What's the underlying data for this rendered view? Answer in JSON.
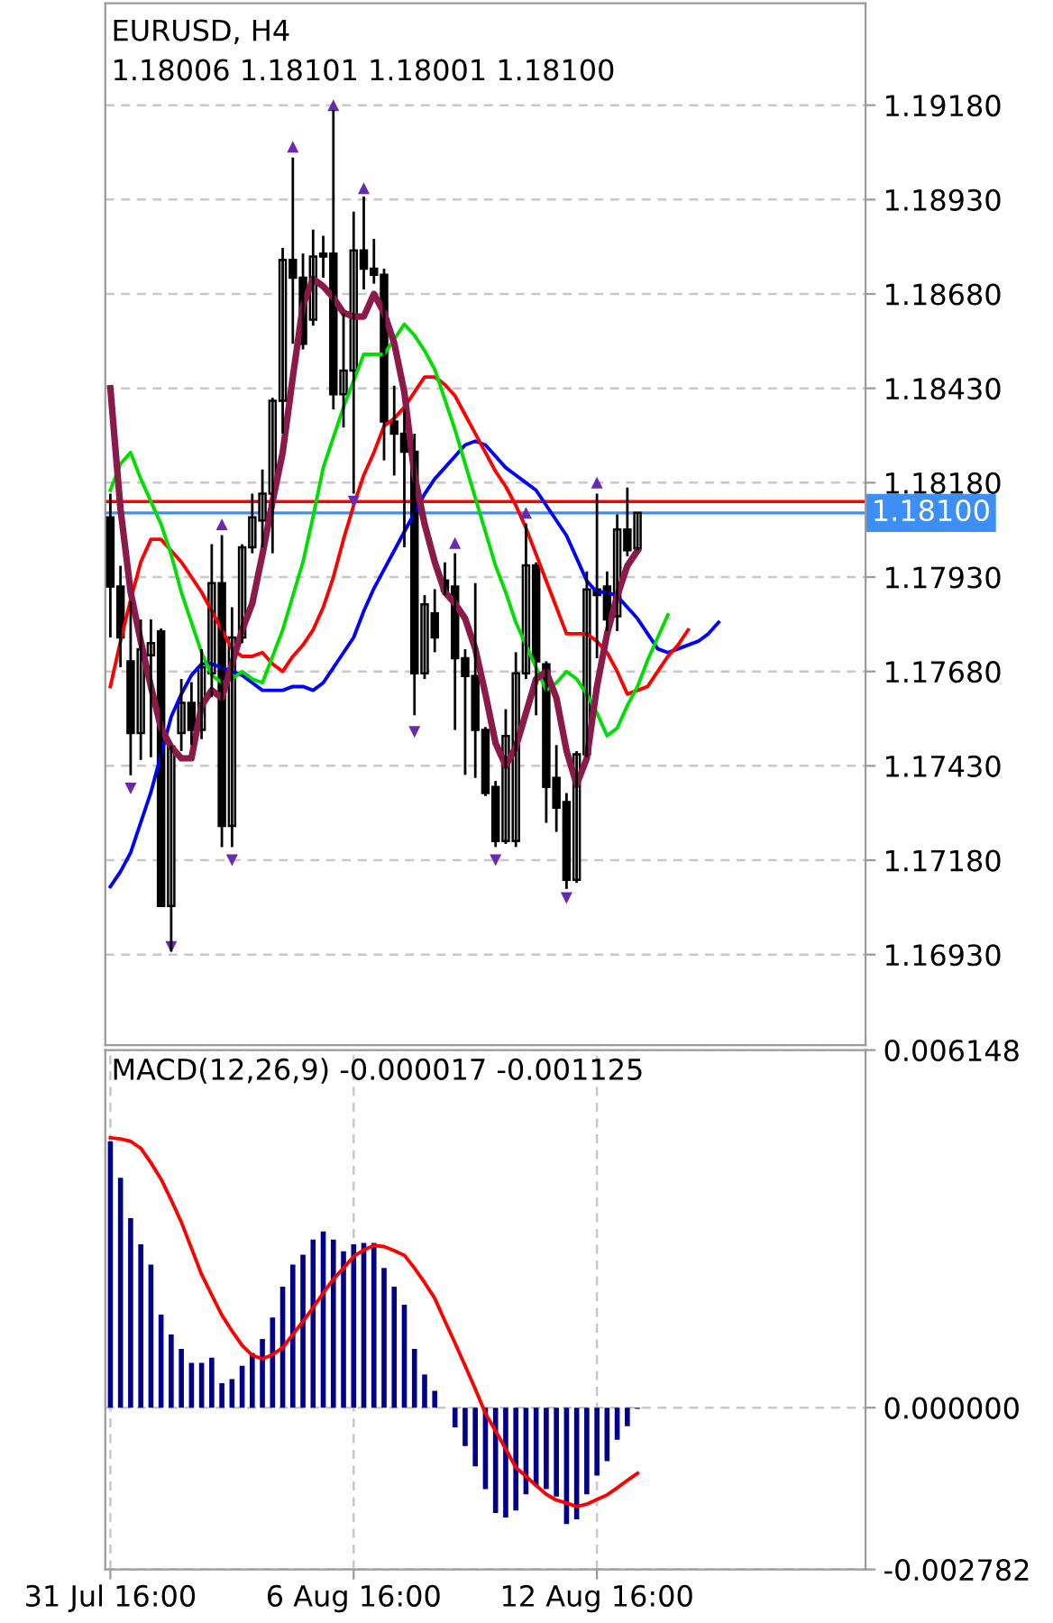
{
  "chart_data": [
    {
      "type": "candlestick",
      "title": "EURUSD, H4",
      "subtitle": "1.18006 1.18101 1.18001 1.18100",
      "categories": [
        null,
        null,
        null,
        null,
        null,
        null,
        null,
        null,
        null,
        null,
        null,
        null,
        null,
        null,
        null,
        null,
        null,
        null,
        null,
        null,
        null,
        null,
        null,
        null,
        null,
        null,
        null,
        null,
        null,
        null,
        null,
        null,
        null,
        null,
        null,
        null,
        null,
        null,
        null,
        null,
        null,
        null,
        null,
        null,
        null,
        null,
        null,
        null,
        null,
        null,
        null,
        null,
        null,
        null,
        null,
        null,
        null,
        null,
        null,
        null,
        null,
        null,
        null,
        null,
        null,
        null,
        null,
        null,
        null,
        null,
        null,
        null,
        null,
        null,
        null
      ],
      "ohlc": [
        [
          1.18088,
          1.18151,
          1.1777,
          1.17905
        ],
        [
          1.17905,
          1.1796,
          1.17691,
          1.1777
        ],
        [
          1.17707,
          1.17866,
          1.17405,
          1.17517
        ],
        [
          1.17517,
          1.17818,
          1.17446,
          1.17739
        ],
        [
          1.17723,
          1.17818,
          1.17453,
          1.17755
        ],
        [
          1.17786,
          1.17794,
          1.17056,
          1.17059
        ],
        [
          1.17059,
          1.17484,
          1.16938,
          1.17481
        ],
        [
          1.17517,
          1.1766,
          1.17469,
          1.17597
        ],
        [
          1.17597,
          1.17652,
          1.17485,
          1.17525
        ],
        [
          1.17525,
          1.17739,
          1.17501,
          1.17691
        ],
        [
          1.17675,
          1.18017,
          1.17612,
          1.17914
        ],
        [
          1.17914,
          1.18041,
          1.17215,
          1.17271
        ],
        [
          1.17271,
          1.1785,
          1.17215,
          1.1777
        ],
        [
          1.1777,
          1.18017,
          1.17755,
          1.18009
        ],
        [
          1.18009,
          1.18151,
          1.17993,
          1.18088
        ],
        [
          1.1808,
          1.18215,
          1.18009,
          1.18151
        ],
        [
          1.18151,
          1.18405,
          1.17993,
          1.18397
        ],
        [
          1.18397,
          1.18802,
          1.1831,
          1.1877
        ],
        [
          1.1877,
          1.19041,
          1.18548,
          1.18723
        ],
        [
          1.18723,
          1.18787,
          1.18533,
          1.18548
        ],
        [
          1.18612,
          1.1885,
          1.18596,
          1.18779
        ],
        [
          1.18787,
          1.18834,
          1.18723,
          1.18779
        ],
        [
          1.18787,
          1.19168,
          1.18374,
          1.18414
        ],
        [
          1.18414,
          1.18628,
          1.18326,
          1.18477
        ],
        [
          1.18477,
          1.18898,
          1.18151,
          1.18795
        ],
        [
          1.18795,
          1.18938,
          1.18692,
          1.18747
        ],
        [
          1.18747,
          1.18826,
          1.18707,
          1.18731
        ],
        [
          1.18731,
          1.18747,
          1.18239,
          1.18342
        ],
        [
          1.18342,
          1.18437,
          1.18199,
          1.1831
        ],
        [
          1.1831,
          1.18374,
          1.18009,
          1.18262
        ],
        [
          1.18262,
          1.1831,
          1.17564,
          1.17675
        ],
        [
          1.17675,
          1.17882,
          1.1766,
          1.17858
        ],
        [
          1.17834,
          1.17898,
          1.17731,
          1.1777
        ],
        [
          1.17921,
          1.17969,
          1.17882,
          1.17894
        ],
        [
          1.17905,
          1.17993,
          1.17525,
          1.17715
        ],
        [
          1.17715,
          1.17739,
          1.17406,
          1.17668
        ],
        [
          1.17668,
          1.17914,
          1.17398,
          1.17525
        ],
        [
          1.17525,
          1.17533,
          1.1735,
          1.17358
        ],
        [
          1.17374,
          1.1739,
          1.17215,
          1.17231
        ],
        [
          1.17231,
          1.1758,
          1.17223,
          1.17509
        ],
        [
          1.17231,
          1.17731,
          1.17215,
          1.17675
        ],
        [
          1.17675,
          1.18072,
          1.1766,
          1.17961
        ],
        [
          1.17961,
          1.17969,
          1.17564,
          1.17707
        ],
        [
          1.17699,
          1.17707,
          1.17279,
          1.17374
        ],
        [
          1.17398,
          1.17485,
          1.17255,
          1.17319
        ],
        [
          1.17334,
          1.17358,
          1.17104,
          1.17128
        ],
        [
          1.17128,
          1.17469,
          1.1712,
          1.17461
        ],
        [
          1.17461,
          1.17945,
          1.17453,
          1.17897
        ],
        [
          1.17897,
          1.18151,
          1.17715,
          1.17882
        ],
        [
          1.17905,
          1.17945,
          1.17787,
          1.17818
        ],
        [
          1.17826,
          1.18096,
          1.17787,
          1.18056
        ],
        [
          1.18056,
          1.18167,
          1.17985,
          1.18001
        ],
        [
          1.18006,
          1.18101,
          1.18001,
          1.181
        ],
        null,
        null,
        null,
        null,
        null,
        null,
        null,
        null,
        null,
        null,
        null,
        null,
        null,
        null,
        null,
        null,
        null,
        null,
        null,
        null,
        null,
        null
      ],
      "series": [
        {
          "type": "line",
          "color": "#0000ff",
          "values": [
            1.1711,
            1.1715,
            1.172,
            1.1728,
            1.1736,
            1.1746,
            1.1756,
            1.1762,
            1.1767,
            1.177,
            1.177,
            1.1769,
            1.1768,
            1.1767,
            1.1765,
            1.1763,
            1.1763,
            1.1763,
            1.1764,
            1.1764,
            1.1763,
            1.1765,
            1.1769,
            1.1773,
            1.1777,
            1.1784,
            1.179,
            1.1795,
            1.18,
            1.1805,
            1.181,
            1.1815,
            1.1819,
            1.1822,
            1.1825,
            1.1828,
            1.1829,
            1.1828,
            1.1825,
            1.1822,
            1.182,
            1.1818,
            1.1816,
            1.1812,
            1.1808,
            1.1804,
            1.1798,
            1.1792,
            1.1789,
            1.1789,
            1.1788,
            1.1785,
            1.1782,
            1.1778,
            1.1774,
            1.1773,
            1.1774,
            1.1775,
            1.1776,
            1.1778,
            1.1781,
            null,
            null,
            null,
            null,
            null,
            null,
            null,
            null,
            null,
            null,
            null,
            null,
            null,
            null
          ]
        },
        {
          "type": "line",
          "color": "#ff0000",
          "values": [
            1.1764,
            1.1776,
            1.1787,
            1.1797,
            1.1803,
            1.1803,
            1.18,
            1.1797,
            1.1793,
            1.1789,
            1.1784,
            1.1779,
            1.1774,
            1.1772,
            1.1772,
            1.1773,
            1.177,
            1.1768,
            1.1772,
            1.1775,
            1.1779,
            1.1785,
            1.1793,
            1.1803,
            1.1812,
            1.182,
            1.1826,
            1.1833,
            1.1835,
            1.1838,
            1.1842,
            1.1846,
            1.1846,
            1.1844,
            1.1841,
            1.1836,
            1.1831,
            1.1826,
            1.1821,
            1.1817,
            1.1812,
            1.1806,
            1.1799,
            1.1792,
            1.1785,
            1.1778,
            1.1778,
            1.1778,
            1.1776,
            1.1773,
            1.1768,
            1.1762,
            1.1763,
            1.1764,
            1.1768,
            1.1772,
            1.1775,
            1.1779,
            null,
            null,
            null,
            null,
            null,
            null,
            null,
            null,
            null,
            null,
            null,
            null,
            null,
            null,
            null,
            null,
            null
          ]
        },
        {
          "type": "line",
          "color": "#00dd00",
          "values": [
            1.1816,
            1.1823,
            1.1826,
            1.1819,
            1.1813,
            1.1807,
            1.1799,
            1.1789,
            1.1781,
            1.1773,
            1.1767,
            1.1765,
            1.1766,
            1.1768,
            1.1766,
            1.1765,
            1.1772,
            1.1779,
            1.1788,
            1.1797,
            1.1809,
            1.1822,
            1.183,
            1.1838,
            1.1845,
            1.1852,
            1.1852,
            1.1852,
            1.1856,
            1.186,
            1.1857,
            1.1853,
            1.1848,
            1.184,
            1.1832,
            1.1823,
            1.1814,
            1.1805,
            1.1796,
            1.1789,
            1.1781,
            1.1775,
            1.1769,
            1.1763,
            1.1765,
            1.1768,
            1.1766,
            1.1762,
            1.1757,
            1.1751,
            1.1753,
            1.1759,
            1.1764,
            1.1771,
            1.1777,
            1.1783,
            null,
            null,
            null,
            null,
            null,
            null,
            null,
            null,
            null,
            null,
            null,
            null,
            null,
            null,
            null,
            null,
            null,
            null,
            null
          ]
        },
        {
          "type": "line",
          "color": "#8b1a4a",
          "values": [
            1.1843,
            1.1811,
            1.1789,
            1.1776,
            1.1764,
            1.1753,
            1.1748,
            1.1745,
            1.1745,
            1.1759,
            1.1763,
            1.1761,
            1.177,
            1.1779,
            1.1786,
            1.1799,
            1.1813,
            1.1826,
            1.1846,
            1.1865,
            1.1872,
            1.187,
            1.1867,
            1.1863,
            1.1862,
            1.1862,
            1.1868,
            1.1863,
            1.1855,
            1.1842,
            1.182,
            1.1807,
            1.1797,
            1.1789,
            1.1786,
            1.1782,
            1.1774,
            1.1762,
            1.1749,
            1.1743,
            1.1748,
            1.1757,
            1.1766,
            1.1768,
            1.1761,
            1.1747,
            1.1738,
            1.1745,
            1.1764,
            1.1778,
            1.1788,
            1.1796,
            1.18,
            null,
            null,
            null,
            null,
            null,
            null,
            null,
            null,
            null,
            null,
            null,
            null,
            null,
            null,
            null,
            null,
            null,
            null,
            null,
            null,
            null,
            null
          ]
        },
        {
          "type": "scatter",
          "marker": "triangle",
          "color": "#6a2ab0",
          "values": [
            null,
            null,
            null,
            null,
            null,
            null,
            null,
            null,
            null,
            null,
            null,
            1.1807,
            null,
            null,
            null,
            null,
            null,
            null,
            1.1907,
            null,
            null,
            null,
            1.1918,
            null,
            null,
            1.1896,
            null,
            null,
            null,
            null,
            null,
            null,
            null,
            null,
            1.1802,
            null,
            null,
            null,
            null,
            null,
            null,
            1.181,
            null,
            null,
            null,
            null,
            null,
            null,
            1.1818,
            null,
            null,
            null,
            null,
            null,
            null,
            null,
            null,
            null,
            null,
            null,
            null,
            null,
            null,
            null,
            null,
            null,
            null,
            null,
            null,
            null,
            null,
            null,
            null,
            null,
            null
          ]
        },
        {
          "type": "scatter",
          "marker": "triangle_down",
          "color": "#6a2ab0",
          "values": [
            null,
            null,
            1.1737,
            null,
            null,
            null,
            1.1695,
            null,
            null,
            null,
            null,
            null,
            1.1718,
            null,
            null,
            null,
            null,
            null,
            null,
            null,
            null,
            null,
            null,
            null,
            1.1813,
            null,
            null,
            null,
            null,
            null,
            1.1752,
            null,
            null,
            null,
            null,
            null,
            null,
            null,
            1.1718,
            null,
            null,
            null,
            null,
            null,
            null,
            1.1708,
            null,
            null,
            null,
            null,
            null,
            null,
            null,
            null,
            null,
            null,
            null,
            null,
            null,
            null,
            null,
            null,
            null,
            null,
            null,
            null,
            null,
            null,
            null,
            null,
            null,
            null,
            null,
            null,
            null
          ]
        }
      ],
      "ylim": [
        1.1669,
        1.1945
      ],
      "yticks": [
        {
          "value": 1.1693,
          "label": "1.16930"
        },
        {
          "value": 1.1718,
          "label": "1.17180"
        },
        {
          "value": 1.1743,
          "label": "1.17430"
        },
        {
          "value": 1.1768,
          "label": "1.17680"
        },
        {
          "value": 1.1793,
          "label": "1.17930"
        },
        {
          "value": 1.1818,
          "label": "1.18180"
        },
        {
          "value": 1.1843,
          "label": "1.18430"
        },
        {
          "value": 1.1868,
          "label": "1.18680"
        },
        {
          "value": 1.1893,
          "label": "1.18930"
        },
        {
          "value": 1.1918,
          "label": "1.19180"
        }
      ],
      "grid": true,
      "tick_labels": "y",
      "ref_lines": [
        {
          "axis": "y",
          "value": 1.1813,
          "color": "#ff0000",
          "line_style": "solid"
        },
        {
          "axis": "y",
          "value": 1.181,
          "label": "1.18100",
          "color": "#3d8ff5",
          "line_style": "solid"
        }
      ]
    },
    {
      "type": "bar",
      "title": "MACD(12,26,9) -0.000017 -0.001125",
      "categories": [
        "31 Jul 16:00",
        null,
        null,
        null,
        null,
        null,
        null,
        null,
        null,
        null,
        null,
        null,
        null,
        null,
        null,
        null,
        null,
        null,
        null,
        null,
        null,
        null,
        null,
        null,
        "6 Aug 16:00",
        null,
        null,
        null,
        null,
        null,
        null,
        null,
        null,
        null,
        null,
        null,
        null,
        null,
        null,
        null,
        null,
        null,
        null,
        null,
        null,
        null,
        null,
        null,
        "12 Aug 16:00",
        null,
        null,
        null,
        null,
        null,
        null,
        null,
        null,
        null,
        null,
        null,
        null,
        null,
        null,
        null,
        null,
        null,
        null,
        null,
        null,
        null,
        null,
        null,
        null,
        null,
        null
      ],
      "series": [
        {
          "type": "bar",
          "color": "#00008b",
          "values": [
            0.00458,
            0.00395,
            0.00326,
            0.00281,
            0.00246,
            0.0016,
            0.00126,
            0.00101,
            0.00077,
            0.00077,
            0.00086,
            0.00042,
            0.00049,
            0.00072,
            0.00094,
            0.00118,
            0.00155,
            0.00208,
            0.00246,
            0.00263,
            0.00289,
            0.00303,
            0.00289,
            0.00269,
            0.00281,
            0.00283,
            0.00283,
            0.0024,
            0.00208,
            0.00177,
            0.00101,
            0.00057,
            0.00029,
            0,
            -0.00034,
            -0.00066,
            -0.00101,
            -0.0014,
            -0.00181,
            -0.00189,
            -0.00177,
            -0.00149,
            -0.00135,
            -0.0014,
            -0.00153,
            -0.002,
            -0.00192,
            -0.00149,
            -0.00117,
            -0.00092,
            -0.00055,
            -0.00032,
            -2e-05,
            null,
            null,
            null,
            null,
            null,
            null,
            null,
            null,
            null,
            null,
            null,
            null,
            null,
            null,
            null,
            null,
            null,
            null,
            null,
            null,
            null,
            null
          ]
        },
        {
          "type": "line",
          "color": "#ff0000",
          "values": [
            0.00464,
            0.00462,
            0.00458,
            0.00446,
            0.00421,
            0.00393,
            0.00357,
            0.00319,
            0.00274,
            0.00229,
            0.00194,
            0.00159,
            0.00132,
            0.00107,
            0.0009,
            0.00084,
            0.00091,
            0.00103,
            0.00126,
            0.00148,
            0.00172,
            0.00197,
            0.00221,
            0.0024,
            0.0026,
            0.00271,
            0.00279,
            0.00277,
            0.0027,
            0.00262,
            0.0024,
            0.00215,
            0.00188,
            0.00149,
            0.00111,
            0.00072,
            0.00032,
            -0.0001,
            -0.0004,
            -0.00071,
            -0.00103,
            -0.00118,
            -0.00134,
            -0.00149,
            -0.00159,
            -0.00164,
            -0.0017,
            -0.00166,
            -0.00158,
            -0.0015,
            -0.00138,
            -0.00125,
            -0.00113,
            null,
            null,
            null,
            null,
            null,
            null,
            null,
            null,
            null,
            null,
            null,
            null,
            null,
            null,
            null,
            null,
            null,
            null,
            null,
            null,
            null,
            null
          ]
        }
      ],
      "ylim": [
        -0.002782,
        0.006148
      ],
      "yticks": [
        -0.002782,
        {
          "value": 0,
          "label": "0.000000"
        },
        0.006148
      ],
      "grid": true
    }
  ]
}
